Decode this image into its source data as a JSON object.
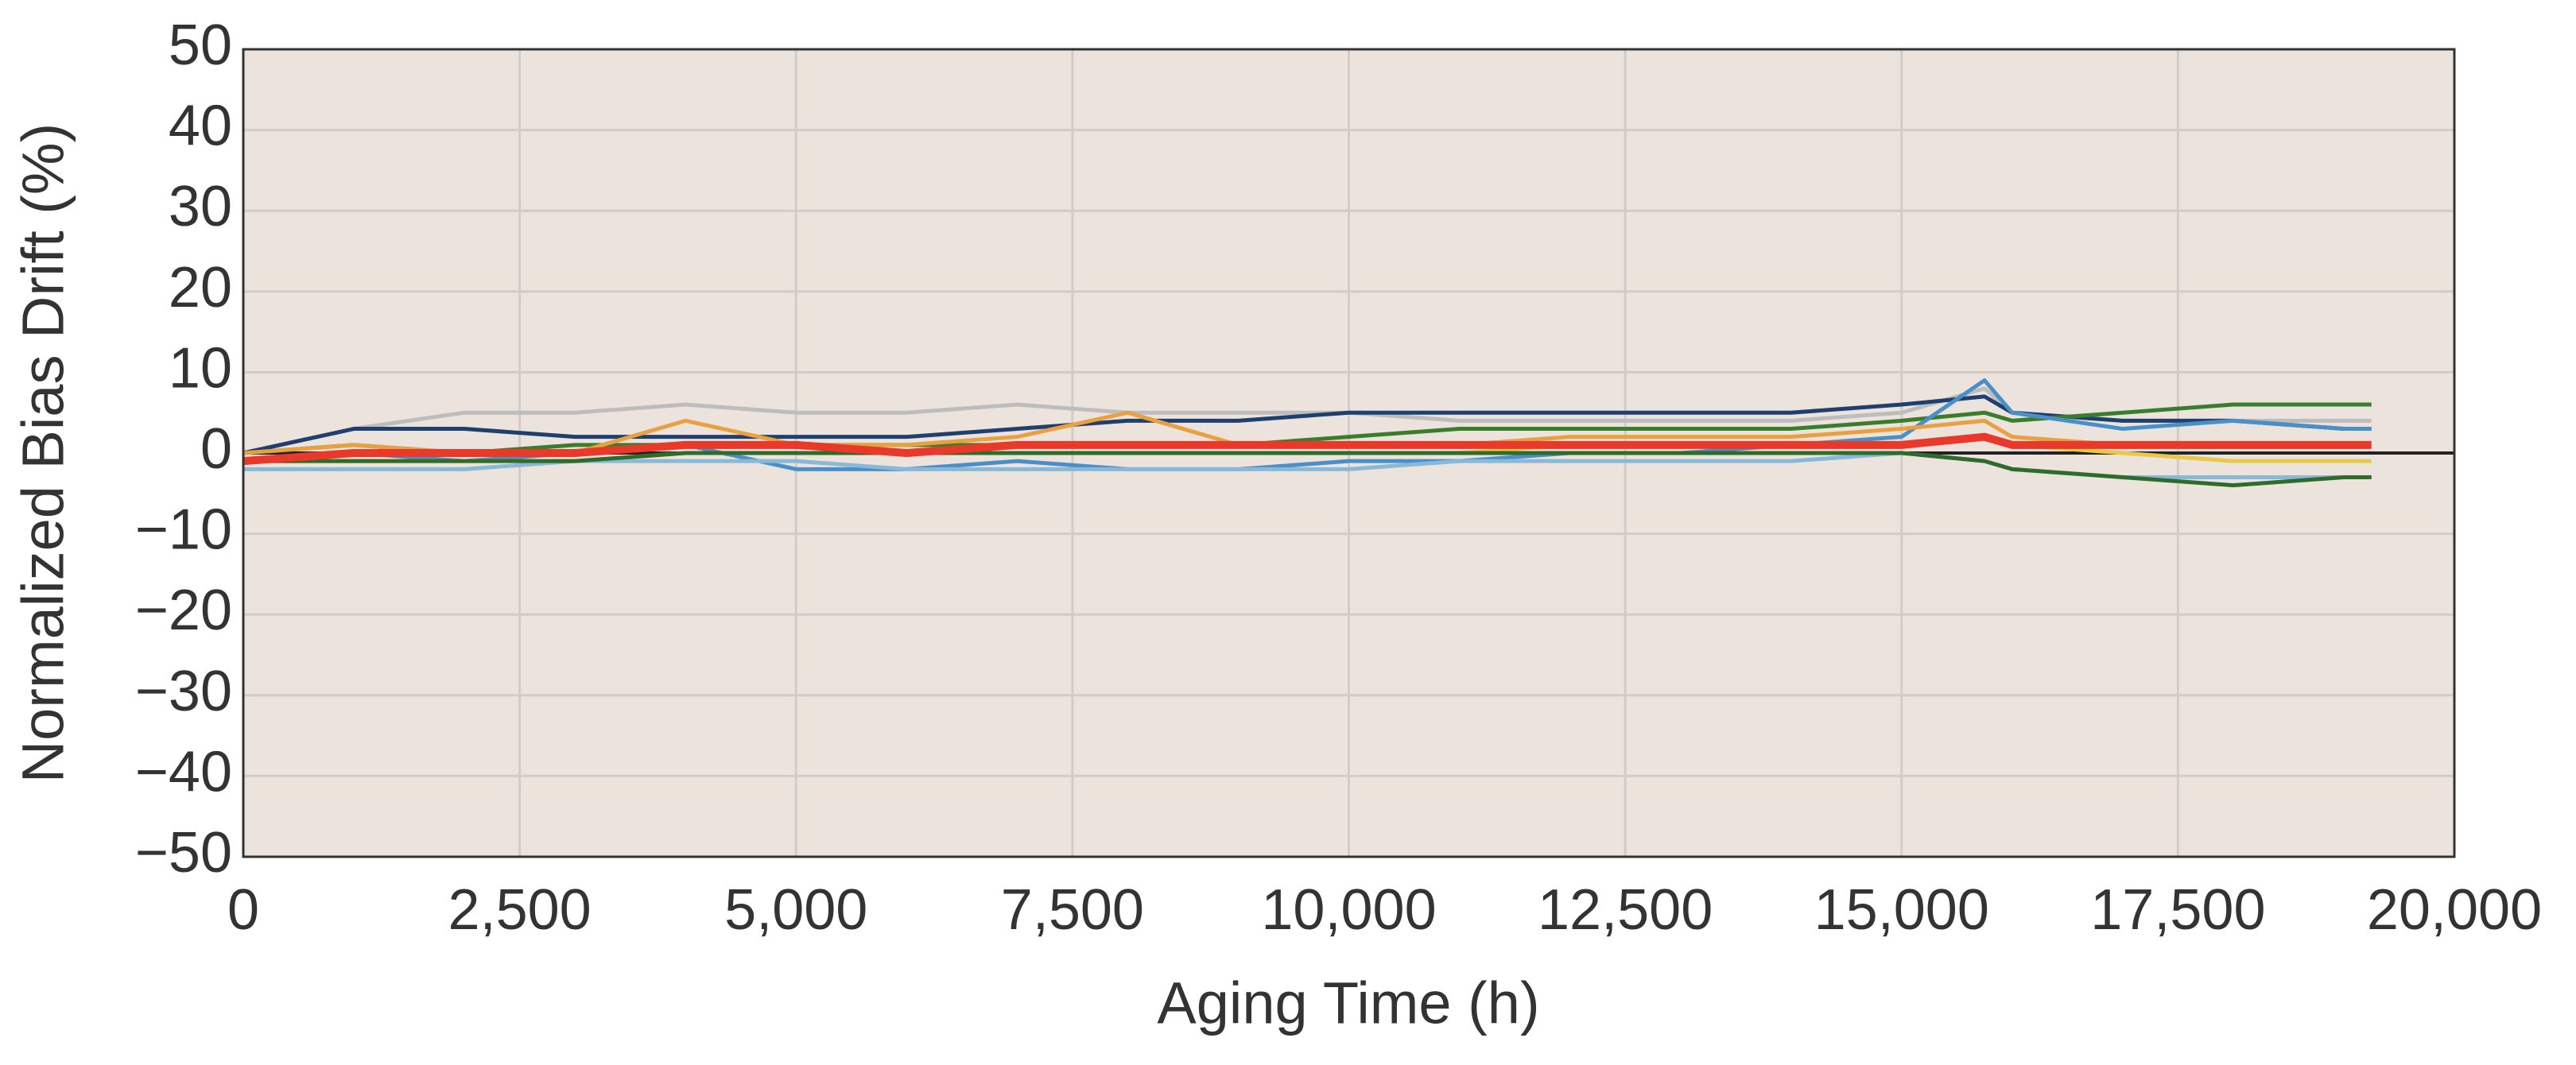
{
  "chart_data": {
    "type": "line",
    "x_label": "Aging Time (h)",
    "y_label": "Normalized Bias Drift (%)",
    "x": [
      0,
      1000,
      2000,
      3000,
      4000,
      5000,
      6000,
      7000,
      8000,
      9000,
      10000,
      11000,
      12000,
      13000,
      14000,
      15000,
      15750,
      16000,
      17000,
      18000,
      19000,
      19250
    ],
    "series": [
      {
        "color": "#bdbdbd",
        "values": [
          0,
          3,
          5,
          5,
          6,
          5,
          5,
          6,
          5,
          5,
          5,
          4,
          4,
          4,
          4,
          5,
          8,
          5,
          4,
          4,
          4,
          4
        ]
      },
      {
        "color": "#1f3f6e",
        "values": [
          0,
          3,
          3,
          2,
          2,
          2,
          2,
          3,
          4,
          4,
          5,
          5,
          5,
          5,
          5,
          6,
          7,
          5,
          4,
          4,
          3,
          3
        ]
      },
      {
        "color": "#3a7d2c",
        "values": [
          0,
          1,
          0,
          1,
          1,
          1,
          1,
          1,
          1,
          1,
          2,
          3,
          3,
          3,
          3,
          4,
          5,
          4,
          5,
          6,
          6,
          6
        ]
      },
      {
        "color": "#4a90c8",
        "values": [
          -1,
          0,
          -1,
          0,
          1,
          -2,
          -2,
          -1,
          -2,
          -2,
          -1,
          -1,
          0,
          0,
          1,
          2,
          9,
          5,
          3,
          4,
          3,
          3
        ]
      },
      {
        "color": "#e8a040",
        "values": [
          0,
          1,
          0,
          0,
          4,
          1,
          1,
          2,
          5,
          1,
          1,
          1,
          2,
          2,
          2,
          3,
          4,
          2,
          1,
          1,
          1,
          1
        ]
      },
      {
        "color": "#e8c84a",
        "values": [
          -1,
          -1,
          -1,
          -1,
          0,
          0,
          0,
          0,
          0,
          0,
          0,
          0,
          1,
          1,
          1,
          1,
          2,
          1,
          0,
          -1,
          -1,
          -1
        ]
      },
      {
        "color": "#8ab8d8",
        "values": [
          -2,
          -2,
          -2,
          -1,
          -1,
          -1,
          -2,
          -2,
          -2,
          -2,
          -2,
          -1,
          -1,
          -1,
          -1,
          0,
          -1,
          -2,
          -3,
          -3,
          -3,
          -3
        ]
      },
      {
        "color": "#2f6b2a",
        "values": [
          -1,
          -1,
          -1,
          -1,
          0,
          0,
          0,
          0,
          0,
          0,
          0,
          0,
          0,
          0,
          0,
          0,
          -1,
          -2,
          -3,
          -4,
          -3,
          -3
        ]
      },
      {
        "color": "#e8392a",
        "width": 10,
        "values": [
          -1,
          0,
          0,
          0,
          1,
          1,
          0,
          1,
          1,
          1,
          1,
          1,
          1,
          1,
          1,
          1,
          2,
          1,
          1,
          1,
          1,
          1
        ]
      }
    ],
    "xlim": [
      0,
      20000
    ],
    "xticks": [
      0,
      {
        "value": 2500,
        "label": "2,500"
      },
      {
        "value": 5000,
        "label": "5,000"
      },
      {
        "value": 7500,
        "label": "7,500"
      },
      {
        "value": 10000,
        "label": "10,000"
      },
      {
        "value": 12500,
        "label": "12,500"
      },
      {
        "value": 15000,
        "label": "15,000"
      },
      {
        "value": 17500,
        "label": "17,500"
      },
      {
        "value": 20000,
        "label": "20,000"
      }
    ],
    "ylim": [
      -50,
      50
    ],
    "yticks": [
      {
        "value": -50,
        "label": "−50"
      },
      {
        "value": -40,
        "label": "−40"
      },
      {
        "value": -30,
        "label": "−30"
      },
      {
        "value": -20,
        "label": "−20"
      },
      {
        "value": -10,
        "label": "−10"
      },
      0,
      10,
      20,
      30,
      40,
      50
    ],
    "grid": true,
    "background": "#ece3dd"
  }
}
